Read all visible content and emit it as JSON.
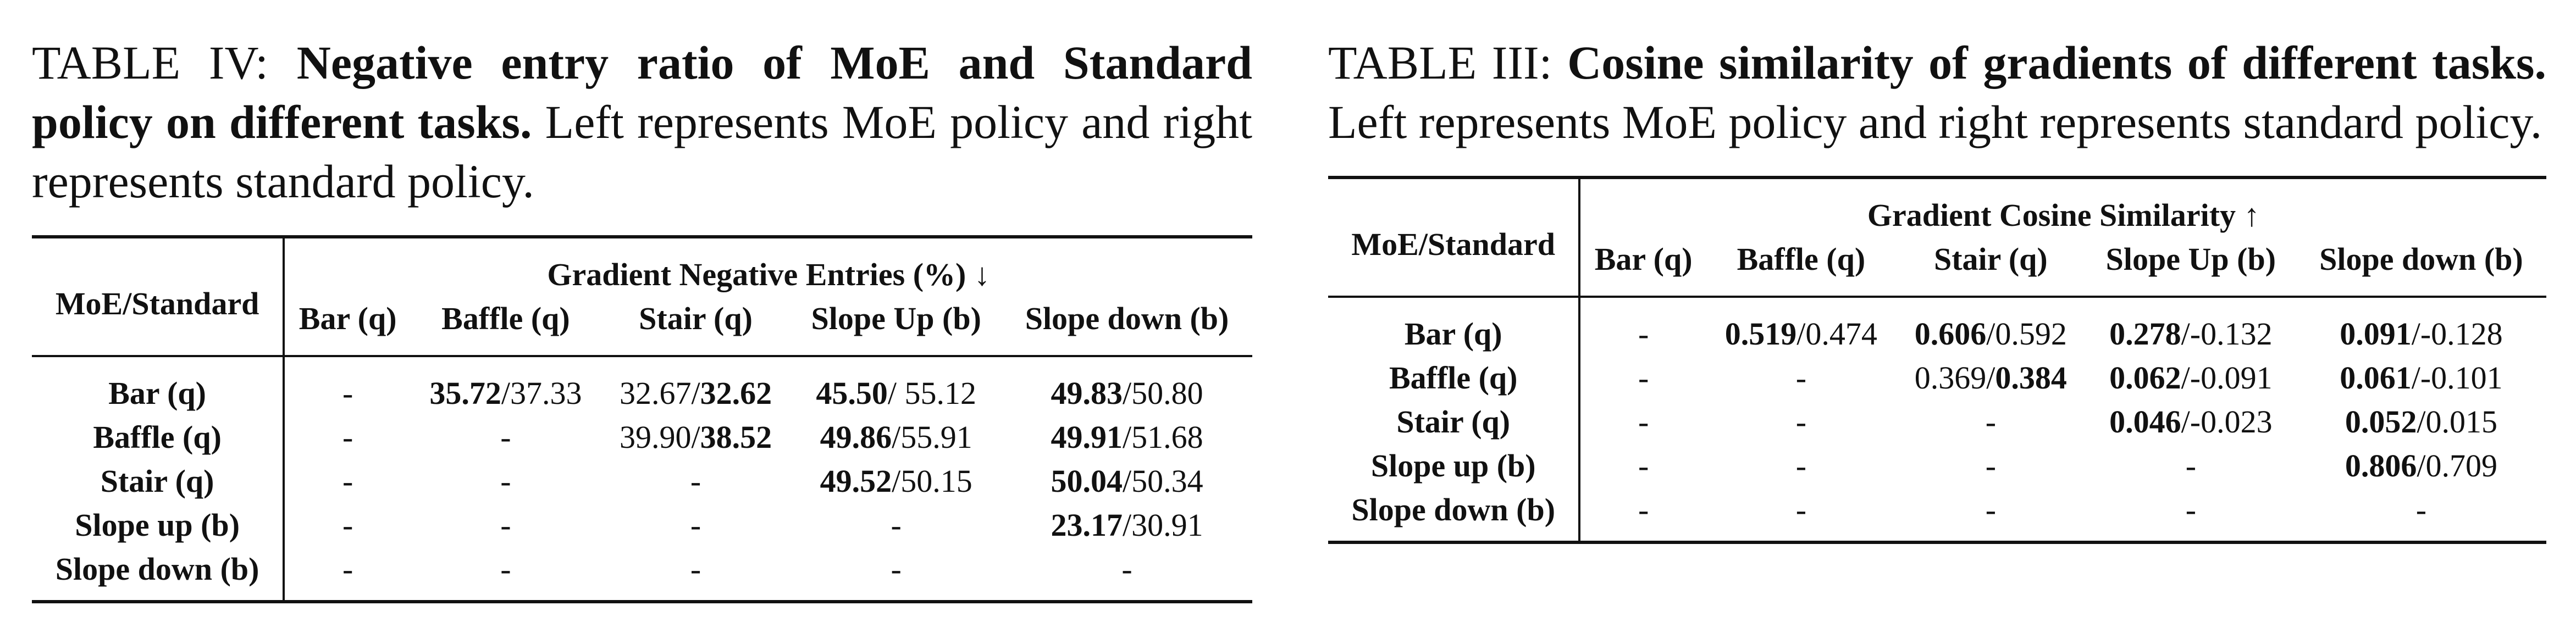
{
  "left": {
    "caption_label": "TABLE IV: ",
    "caption_bold": "Negative entry ratio of MoE and Standard policy on different tasks.",
    "caption_rest": " Left represents MoE policy and right represents standard policy.",
    "corner": "MoE/Standard",
    "group_header": "Gradient Negative Entries (%) ↓",
    "columns": [
      "Bar (q)",
      "Baffle (q)",
      "Stair (q)",
      "Slope Up (b)",
      "Slope down (b)"
    ],
    "rows": [
      {
        "label": "Bar (q)",
        "cells": [
          [
            "-",
            "",
            ""
          ],
          [
            "35.72",
            "/37.33",
            "a"
          ],
          [
            "32.67/",
            "32.62",
            "b"
          ],
          [
            "45.50",
            "/ 55.12",
            "a"
          ],
          [
            "49.83",
            "/50.80",
            "a"
          ]
        ]
      },
      {
        "label": "Baffle (q)",
        "cells": [
          [
            "-",
            "",
            ""
          ],
          [
            "-",
            "",
            ""
          ],
          [
            "39.90/",
            "38.52",
            "b"
          ],
          [
            "49.86",
            "/55.91",
            "a"
          ],
          [
            "49.91",
            "/51.68",
            "a"
          ]
        ]
      },
      {
        "label": "Stair (q)",
        "cells": [
          [
            "-",
            "",
            ""
          ],
          [
            "-",
            "",
            ""
          ],
          [
            "-",
            "",
            ""
          ],
          [
            "49.52",
            "/50.15",
            "a"
          ],
          [
            "50.04",
            "/50.34",
            "a"
          ]
        ]
      },
      {
        "label": "Slope up (b)",
        "cells": [
          [
            "-",
            "",
            ""
          ],
          [
            "-",
            "",
            ""
          ],
          [
            "-",
            "",
            ""
          ],
          [
            "-",
            "",
            ""
          ],
          [
            "23.17",
            "/30.91",
            "a"
          ]
        ]
      },
      {
        "label": "Slope down (b)",
        "cells": [
          [
            "-",
            "",
            ""
          ],
          [
            "-",
            "",
            ""
          ],
          [
            "-",
            "",
            ""
          ],
          [
            "-",
            "",
            ""
          ],
          [
            "-",
            "",
            ""
          ]
        ]
      }
    ]
  },
  "right": {
    "caption_label": "TABLE III: ",
    "caption_bold": "Cosine similarity of gradients of different tasks.",
    "caption_rest": " Left represents MoE policy and right represents standard policy.",
    "corner": "MoE/Standard",
    "group_header": "Gradient Cosine Similarity ↑",
    "columns": [
      "Bar (q)",
      "Baffle (q)",
      "Stair (q)",
      "Slope Up (b)",
      "Slope down (b)"
    ],
    "rows": [
      {
        "label": "Bar (q)",
        "cells": [
          [
            "-",
            "",
            ""
          ],
          [
            "0.519",
            "/0.474",
            "a"
          ],
          [
            "0.606",
            "/0.592",
            "a"
          ],
          [
            "0.278",
            "/-0.132",
            "a"
          ],
          [
            "0.091",
            "/-0.128",
            "a"
          ]
        ]
      },
      {
        "label": "Baffle (q)",
        "cells": [
          [
            "-",
            "",
            ""
          ],
          [
            "-",
            "",
            ""
          ],
          [
            "0.369/",
            "0.384",
            "b"
          ],
          [
            "0.062",
            "/-0.091",
            "a"
          ],
          [
            "0.061",
            "/-0.101",
            "a"
          ]
        ]
      },
      {
        "label": "Stair (q)",
        "cells": [
          [
            "-",
            "",
            ""
          ],
          [
            "-",
            "",
            ""
          ],
          [
            "-",
            "",
            ""
          ],
          [
            "0.046",
            "/-0.023",
            "a"
          ],
          [
            "0.052",
            "/0.015",
            "a"
          ]
        ]
      },
      {
        "label": "Slope up (b)",
        "cells": [
          [
            "-",
            "",
            ""
          ],
          [
            "-",
            "",
            ""
          ],
          [
            "-",
            "",
            ""
          ],
          [
            "-",
            "",
            ""
          ],
          [
            "0.806",
            "/0.709",
            "a"
          ]
        ]
      },
      {
        "label": "Slope down (b)",
        "cells": [
          [
            "-",
            "",
            ""
          ],
          [
            "-",
            "",
            ""
          ],
          [
            "-",
            "",
            ""
          ],
          [
            "-",
            "",
            ""
          ],
          [
            "-",
            "",
            ""
          ]
        ]
      }
    ]
  }
}
